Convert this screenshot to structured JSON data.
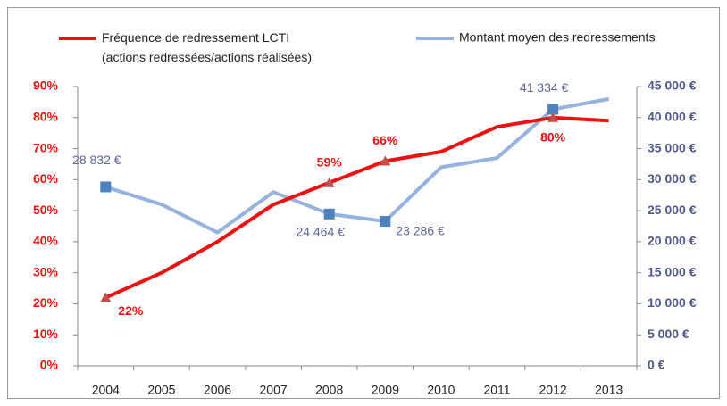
{
  "chart_data": {
    "type": "line",
    "categories": [
      "2004",
      "2005",
      "2006",
      "2007",
      "2008",
      "2009",
      "2010",
      "2011",
      "2012",
      "2013"
    ],
    "series": [
      {
        "name": "Fréquence de redressement LCTI\n(actions redressées/actions réalisées)",
        "color": "#ee1111",
        "marker_color": "#c0504d",
        "values": [
          22,
          30,
          40,
          52,
          59,
          66,
          69,
          77,
          80,
          79
        ],
        "value_labels": [
          "22%",
          null,
          null,
          null,
          "59%",
          "66%",
          null,
          null,
          "80%",
          null
        ]
      },
      {
        "name": "Montant moyen des redressements",
        "color": "#95b3de",
        "marker_color": "#4f81bd",
        "axis": "y2",
        "values": [
          28832,
          26000,
          21500,
          28000,
          24464,
          23286,
          32000,
          33500,
          41334,
          43000
        ],
        "value_labels": [
          "28 832 €",
          null,
          null,
          null,
          "24 464 €",
          "23 286 €",
          null,
          null,
          "41 334 €",
          null
        ]
      }
    ],
    "ylim": [
      0,
      90
    ],
    "yticks": [
      {
        "value": 0,
        "label": "0%"
      },
      {
        "value": 10,
        "label": "10%"
      },
      {
        "value": 20,
        "label": "20%"
      },
      {
        "value": 30,
        "label": "30%"
      },
      {
        "value": 40,
        "label": "40%"
      },
      {
        "value": 50,
        "label": "50%"
      },
      {
        "value": 60,
        "label": "60%"
      },
      {
        "value": 70,
        "label": "70%"
      },
      {
        "value": 80,
        "label": "80%"
      },
      {
        "value": 90,
        "label": "90%"
      }
    ],
    "y2lim": [
      0,
      45000
    ],
    "y2ticks": [
      {
        "value": 0,
        "label": "0 €"
      },
      {
        "value": 5000,
        "label": "5 000 €"
      },
      {
        "value": 10000,
        "label": "10 000 €"
      },
      {
        "value": 15000,
        "label": "15 000 €"
      },
      {
        "value": 20000,
        "label": "20 000 €"
      },
      {
        "value": 25000,
        "label": "25 000 €"
      },
      {
        "value": 30000,
        "label": "30 000 €"
      },
      {
        "value": 35000,
        "label": "35 000 €"
      },
      {
        "value": 40000,
        "label": "40 000 €"
      },
      {
        "value": 45000,
        "label": "45 000 €"
      }
    ],
    "legend": "top"
  }
}
